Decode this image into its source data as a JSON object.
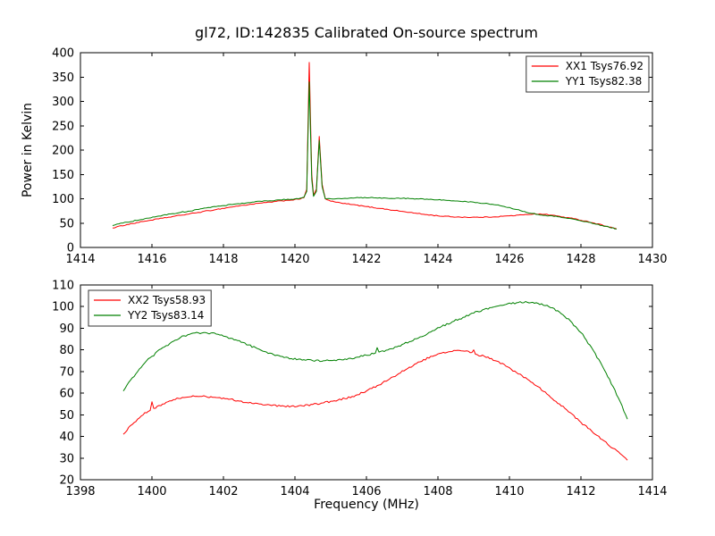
{
  "chart_data": [
    {
      "type": "line",
      "title": "gl72, ID:142835 Calibrated On-source spectrum",
      "ylabel": "Power in Kelvin",
      "xlabel": "",
      "xlim": [
        1414,
        1430
      ],
      "ylim": [
        0,
        400
      ],
      "xticks": [
        1414,
        1416,
        1418,
        1420,
        1422,
        1424,
        1426,
        1428,
        1430
      ],
      "yticks": [
        0,
        50,
        100,
        150,
        200,
        250,
        300,
        350,
        400
      ],
      "grid": false,
      "legend_position": "upper-right",
      "series": [
        {
          "name": "XX1 Tsys76.92",
          "color": "#ff0000",
          "noise": 0.9,
          "points": [
            [
              1414.9,
              40
            ],
            [
              1415.3,
              47
            ],
            [
              1415.8,
              54
            ],
            [
              1416.3,
              60
            ],
            [
              1416.8,
              66
            ],
            [
              1417.3,
              72
            ],
            [
              1417.8,
              78
            ],
            [
              1418.3,
              84
            ],
            [
              1418.8,
              89
            ],
            [
              1419.3,
              93
            ],
            [
              1419.8,
              97
            ],
            [
              1420.1,
              99
            ],
            [
              1420.25,
              102
            ],
            [
              1420.33,
              120
            ],
            [
              1420.4,
              380
            ],
            [
              1420.47,
              150
            ],
            [
              1420.52,
              107
            ],
            [
              1420.6,
              120
            ],
            [
              1420.68,
              228
            ],
            [
              1420.76,
              130
            ],
            [
              1420.85,
              100
            ],
            [
              1421.0,
              95
            ],
            [
              1421.3,
              91
            ],
            [
              1421.6,
              88
            ],
            [
              1422.0,
              84
            ],
            [
              1422.4,
              80
            ],
            [
              1422.8,
              76
            ],
            [
              1423.2,
              72
            ],
            [
              1423.6,
              68
            ],
            [
              1424.0,
              65
            ],
            [
              1424.4,
              63
            ],
            [
              1424.8,
              62
            ],
            [
              1425.2,
              62
            ],
            [
              1425.6,
              63
            ],
            [
              1426.0,
              65
            ],
            [
              1426.4,
              67
            ],
            [
              1426.7,
              69
            ],
            [
              1427.0,
              68
            ],
            [
              1427.4,
              64
            ],
            [
              1427.8,
              59
            ],
            [
              1428.2,
              53
            ],
            [
              1428.6,
              46
            ],
            [
              1429.0,
              38
            ]
          ]
        },
        {
          "name": "YY1 Tsys82.38",
          "color": "#008000",
          "noise": 0.9,
          "points": [
            [
              1414.9,
              45
            ],
            [
              1415.3,
              52
            ],
            [
              1415.8,
              59
            ],
            [
              1416.3,
              66
            ],
            [
              1416.8,
              72
            ],
            [
              1417.3,
              78
            ],
            [
              1417.8,
              84
            ],
            [
              1418.3,
              89
            ],
            [
              1418.8,
              93
            ],
            [
              1419.3,
              96
            ],
            [
              1419.8,
              99
            ],
            [
              1420.1,
              100
            ],
            [
              1420.25,
              103
            ],
            [
              1420.33,
              115
            ],
            [
              1420.4,
              340
            ],
            [
              1420.47,
              140
            ],
            [
              1420.52,
              105
            ],
            [
              1420.6,
              115
            ],
            [
              1420.68,
              220
            ],
            [
              1420.76,
              125
            ],
            [
              1420.85,
              100
            ],
            [
              1421.0,
              100
            ],
            [
              1421.4,
              101
            ],
            [
              1421.8,
              102
            ],
            [
              1422.2,
              102
            ],
            [
              1422.6,
              101
            ],
            [
              1423.0,
              101
            ],
            [
              1423.4,
              100
            ],
            [
              1423.8,
              99
            ],
            [
              1424.2,
              97
            ],
            [
              1424.6,
              95
            ],
            [
              1425.0,
              93
            ],
            [
              1425.4,
              90
            ],
            [
              1425.8,
              85
            ],
            [
              1426.2,
              78
            ],
            [
              1426.6,
              70
            ],
            [
              1427.0,
              66
            ],
            [
              1427.4,
              63
            ],
            [
              1427.8,
              58
            ],
            [
              1428.2,
              52
            ],
            [
              1428.6,
              45
            ],
            [
              1429.0,
              38
            ]
          ]
        }
      ]
    },
    {
      "type": "line",
      "title": "",
      "ylabel": "",
      "xlabel": "Frequency (MHz)",
      "xlim": [
        1398,
        1414
      ],
      "ylim": [
        20,
        110
      ],
      "xticks": [
        1398,
        1400,
        1402,
        1404,
        1406,
        1408,
        1410,
        1412,
        1414
      ],
      "yticks": [
        20,
        30,
        40,
        50,
        60,
        70,
        80,
        90,
        100,
        110
      ],
      "grid": false,
      "legend_position": "upper-left",
      "series": [
        {
          "name": "XX2 Tsys58.93",
          "color": "#ff0000",
          "noise": 0.45,
          "points": [
            [
              1399.2,
              41
            ],
            [
              1399.4,
              45
            ],
            [
              1399.6,
              48
            ],
            [
              1399.8,
              51
            ],
            [
              1399.95,
              52
            ],
            [
              1400.0,
              56
            ],
            [
              1400.05,
              53
            ],
            [
              1400.3,
              55
            ],
            [
              1400.6,
              57
            ],
            [
              1400.9,
              58
            ],
            [
              1401.2,
              58.5
            ],
            [
              1401.5,
              58.5
            ],
            [
              1401.8,
              58
            ],
            [
              1402.1,
              57.5
            ],
            [
              1402.4,
              56.5
            ],
            [
              1402.7,
              55.5
            ],
            [
              1403.0,
              55
            ],
            [
              1403.3,
              54.5
            ],
            [
              1403.6,
              54
            ],
            [
              1403.9,
              54
            ],
            [
              1404.2,
              54.2
            ],
            [
              1404.5,
              54.8
            ],
            [
              1404.8,
              55.5
            ],
            [
              1405.1,
              56.5
            ],
            [
              1405.4,
              57.5
            ],
            [
              1405.7,
              59
            ],
            [
              1406.0,
              61
            ],
            [
              1406.3,
              63.5
            ],
            [
              1406.6,
              66
            ],
            [
              1406.9,
              69
            ],
            [
              1407.2,
              72
            ],
            [
              1407.5,
              74.5
            ],
            [
              1407.8,
              77
            ],
            [
              1408.1,
              78.5
            ],
            [
              1408.4,
              79.3
            ],
            [
              1408.7,
              79.5
            ],
            [
              1408.95,
              78.8
            ],
            [
              1409.0,
              80
            ],
            [
              1409.05,
              78
            ],
            [
              1409.3,
              77
            ],
            [
              1409.6,
              75
            ],
            [
              1409.9,
              72.5
            ],
            [
              1410.2,
              69.5
            ],
            [
              1410.5,
              66.5
            ],
            [
              1410.8,
              63
            ],
            [
              1411.1,
              59
            ],
            [
              1411.4,
              55
            ],
            [
              1411.7,
              51
            ],
            [
              1412.0,
              46.5
            ],
            [
              1412.3,
              42.5
            ],
            [
              1412.6,
              38.5
            ],
            [
              1412.9,
              34.5
            ],
            [
              1413.1,
              32
            ],
            [
              1413.3,
              29
            ]
          ]
        },
        {
          "name": "YY2 Tsys83.14",
          "color": "#008000",
          "noise": 0.45,
          "points": [
            [
              1399.2,
              61
            ],
            [
              1399.4,
              66
            ],
            [
              1399.6,
              70
            ],
            [
              1399.8,
              74
            ],
            [
              1400.0,
              77
            ],
            [
              1400.3,
              81
            ],
            [
              1400.6,
              84
            ],
            [
              1400.9,
              86.5
            ],
            [
              1401.2,
              87.8
            ],
            [
              1401.5,
              88
            ],
            [
              1401.8,
              87.3
            ],
            [
              1402.1,
              86
            ],
            [
              1402.4,
              84.3
            ],
            [
              1402.7,
              82.3
            ],
            [
              1403.0,
              80.3
            ],
            [
              1403.3,
              78.5
            ],
            [
              1403.6,
              77
            ],
            [
              1403.9,
              76
            ],
            [
              1404.2,
              75.3
            ],
            [
              1404.5,
              75
            ],
            [
              1404.8,
              75
            ],
            [
              1405.1,
              75.3
            ],
            [
              1405.4,
              75.8
            ],
            [
              1405.7,
              76.5
            ],
            [
              1406.0,
              77.5
            ],
            [
              1406.25,
              78.5
            ],
            [
              1406.3,
              81
            ],
            [
              1406.35,
              79
            ],
            [
              1406.6,
              80
            ],
            [
              1406.9,
              81.8
            ],
            [
              1407.2,
              83.8
            ],
            [
              1407.5,
              86
            ],
            [
              1407.8,
              88.3
            ],
            [
              1408.1,
              90.8
            ],
            [
              1408.4,
              93
            ],
            [
              1408.7,
              95
            ],
            [
              1409.0,
              97
            ],
            [
              1409.3,
              98.8
            ],
            [
              1409.6,
              100
            ],
            [
              1409.9,
              101
            ],
            [
              1410.2,
              101.8
            ],
            [
              1410.5,
              102
            ],
            [
              1410.8,
              101.5
            ],
            [
              1411.1,
              100
            ],
            [
              1411.4,
              97.5
            ],
            [
              1411.7,
              93.5
            ],
            [
              1412.0,
              88
            ],
            [
              1412.3,
              81
            ],
            [
              1412.6,
              72.5
            ],
            [
              1412.9,
              63
            ],
            [
              1413.1,
              56
            ],
            [
              1413.3,
              48
            ]
          ]
        }
      ]
    }
  ],
  "colors": {
    "xx_line": "#ff0000",
    "yy_line": "#008000",
    "axes": "#000000",
    "background": "#ffffff"
  }
}
